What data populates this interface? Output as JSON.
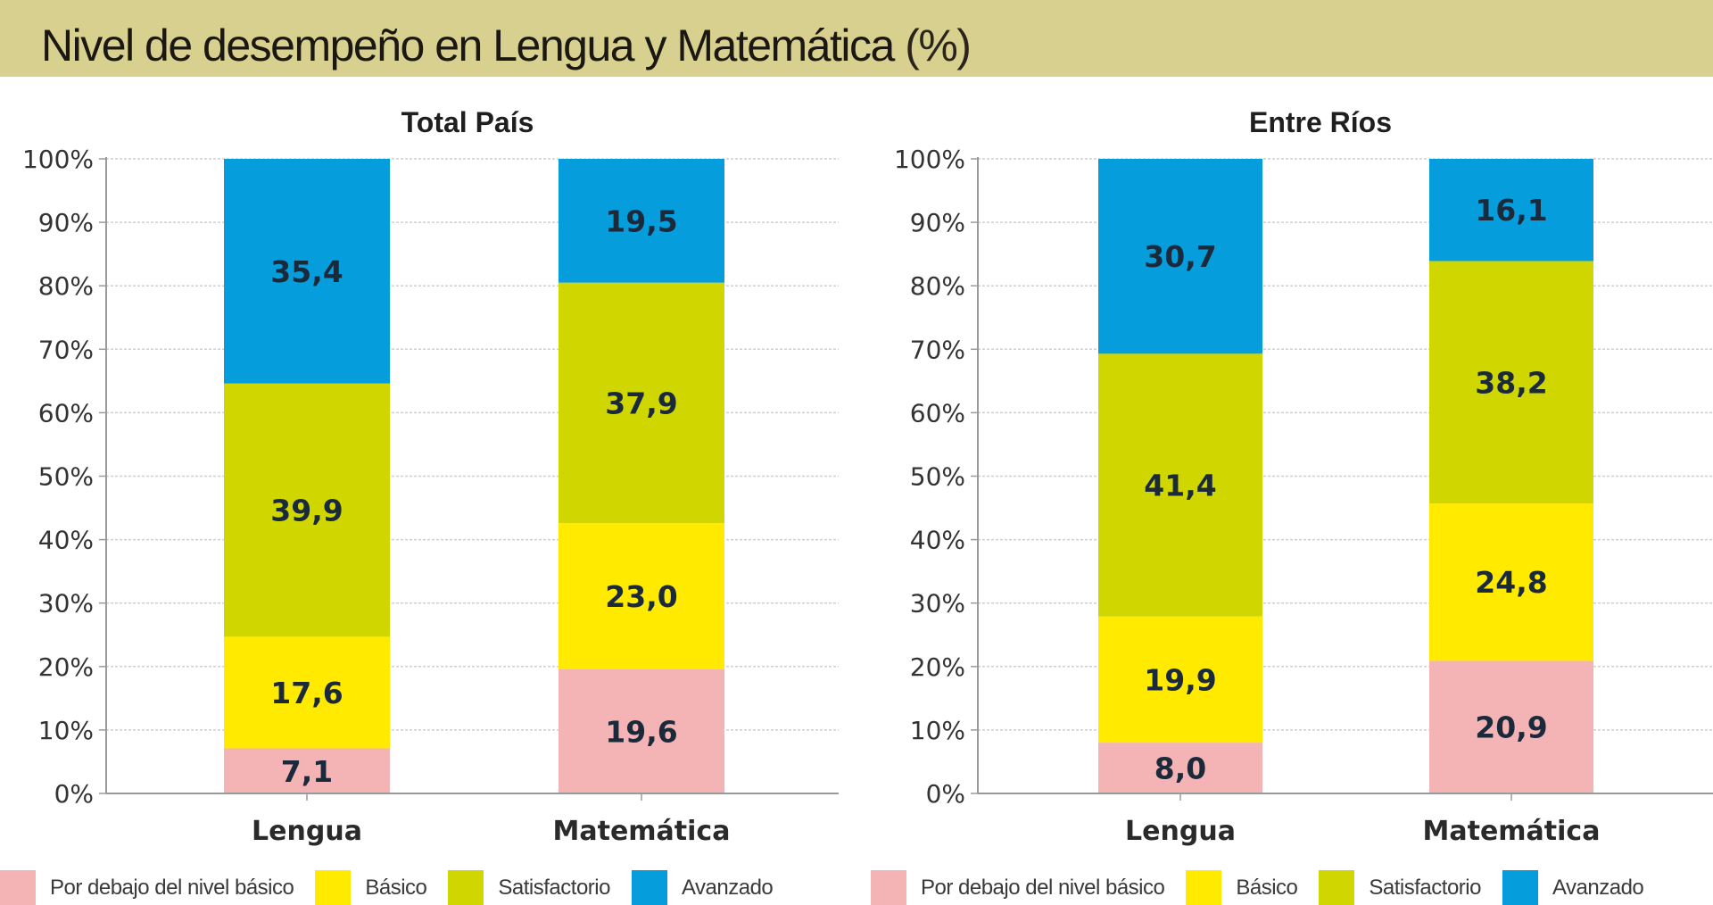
{
  "title": "Nivel de desempeño en Lengua y Matemática",
  "title_suffix": "(%)",
  "colors": {
    "header_bg": "#d8d08f",
    "por_debajo": "#f4b3b5",
    "basico": "#ffea00",
    "satisfactorio": "#cfd600",
    "avanzado": "#069ddd",
    "label_text": "#1b2a3a"
  },
  "legend": [
    {
      "label": "Por debajo del nivel básico",
      "color_key": "por_debajo"
    },
    {
      "label": "Básico",
      "color_key": "basico"
    },
    {
      "label": "Satisfactorio",
      "color_key": "satisfactorio"
    },
    {
      "label": "Avanzado",
      "color_key": "avanzado"
    }
  ],
  "chart_data": [
    {
      "type": "bar",
      "stacked": true,
      "title": "Total País",
      "categories": [
        "Lengua",
        "Matemática"
      ],
      "series": [
        {
          "name": "Por debajo del nivel básico",
          "values": [
            7.1,
            19.6
          ],
          "labels": [
            "7,1",
            "19,6"
          ]
        },
        {
          "name": "Básico",
          "values": [
            17.6,
            23.0
          ],
          "labels": [
            "17,6",
            "23,0"
          ]
        },
        {
          "name": "Satisfactorio",
          "values": [
            39.9,
            37.9
          ],
          "labels": [
            "39,9",
            "37,9"
          ]
        },
        {
          "name": "Avanzado",
          "values": [
            35.4,
            19.5
          ],
          "labels": [
            "35,4",
            "19,5"
          ]
        }
      ],
      "ylim": [
        0,
        100
      ],
      "yticks": [
        "0%",
        "10%",
        "20%",
        "30%",
        "40%",
        "50%",
        "60%",
        "70%",
        "80%",
        "90%",
        "100%"
      ],
      "grid": true,
      "legend_position": "bottom"
    },
    {
      "type": "bar",
      "stacked": true,
      "title": "Entre Ríos",
      "categories": [
        "Lengua",
        "Matemática"
      ],
      "series": [
        {
          "name": "Por debajo del nivel básico",
          "values": [
            8.0,
            20.9
          ],
          "labels": [
            "8,0",
            "20,9"
          ]
        },
        {
          "name": "Básico",
          "values": [
            19.9,
            24.8
          ],
          "labels": [
            "19,9",
            "24,8"
          ]
        },
        {
          "name": "Satisfactorio",
          "values": [
            41.4,
            38.2
          ],
          "labels": [
            "41,4",
            "38,2"
          ]
        },
        {
          "name": "Avanzado",
          "values": [
            30.7,
            16.1
          ],
          "labels": [
            "30,7",
            "16,1"
          ]
        }
      ],
      "ylim": [
        0,
        100
      ],
      "yticks": [
        "0%",
        "10%",
        "20%",
        "30%",
        "40%",
        "50%",
        "60%",
        "70%",
        "80%",
        "90%",
        "100%"
      ],
      "grid": true,
      "legend_position": "bottom"
    }
  ]
}
